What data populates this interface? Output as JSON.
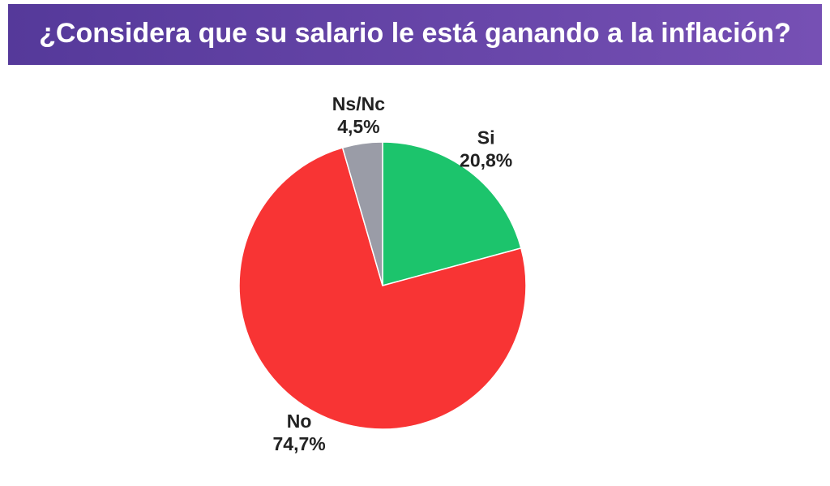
{
  "chart_data": {
    "type": "pie",
    "title": "¿Considera que su salario le está ganando a la inflación?",
    "categories": [
      "Si",
      "No",
      "Ns/Nc"
    ],
    "values": [
      20.8,
      74.7,
      4.5
    ],
    "value_labels": [
      "20,8%",
      "74,7%",
      "4,5%"
    ],
    "colors": [
      "#1cc46c",
      "#f83434",
      "#9a9ca7"
    ]
  }
}
